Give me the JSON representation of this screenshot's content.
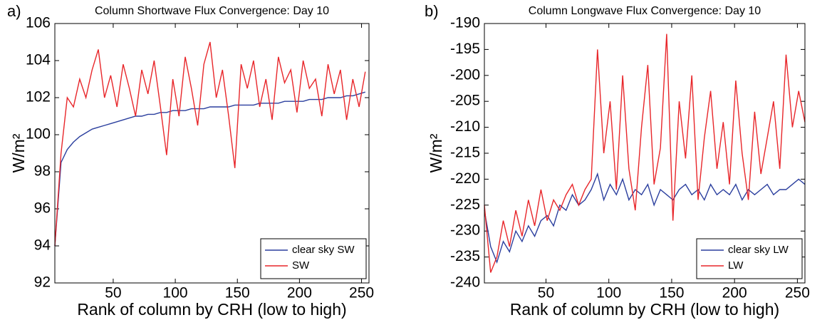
{
  "chart_data": [
    {
      "type": "line",
      "panel": "a)",
      "title": "Column Shortwave Flux Convergence: Day 10",
      "xlabel": "Rank of column by CRH (low to high)",
      "ylabel": "W/m²",
      "x": [
        3,
        8,
        13,
        18,
        23,
        28,
        33,
        38,
        43,
        48,
        53,
        58,
        63,
        68,
        73,
        78,
        83,
        88,
        93,
        98,
        103,
        108,
        113,
        118,
        123,
        128,
        133,
        138,
        143,
        148,
        153,
        158,
        163,
        168,
        173,
        178,
        183,
        188,
        193,
        198,
        203,
        208,
        213,
        218,
        223,
        228,
        233,
        238,
        243,
        248,
        253
      ],
      "series": [
        {
          "name": "clear sky SW",
          "color": "#2b3f9e",
          "values": [
            94.0,
            98.5,
            99.2,
            99.6,
            99.9,
            100.1,
            100.3,
            100.4,
            100.5,
            100.6,
            100.7,
            100.8,
            100.9,
            101.0,
            101.0,
            101.1,
            101.1,
            101.2,
            101.2,
            101.3,
            101.3,
            101.3,
            101.4,
            101.4,
            101.4,
            101.5,
            101.5,
            101.5,
            101.5,
            101.6,
            101.6,
            101.6,
            101.6,
            101.7,
            101.7,
            101.7,
            101.7,
            101.8,
            101.8,
            101.8,
            101.8,
            101.9,
            101.9,
            101.9,
            102.0,
            102.0,
            102.0,
            102.1,
            102.1,
            102.2,
            102.3
          ]
        },
        {
          "name": "SW",
          "color": "#e8262a",
          "values": [
            94.0,
            99.0,
            102.0,
            101.5,
            103.0,
            102.0,
            103.5,
            104.6,
            102.0,
            103.2,
            101.5,
            103.8,
            102.5,
            101.0,
            103.5,
            102.2,
            104.0,
            101.5,
            98.9,
            103.0,
            101.0,
            104.2,
            102.5,
            100.5,
            103.8,
            105.0,
            102.0,
            103.5,
            101.0,
            98.2,
            103.8,
            102.5,
            104.0,
            101.5,
            103.0,
            100.8,
            104.2,
            102.8,
            103.5,
            101.2,
            104.0,
            102.5,
            103.0,
            101.0,
            103.8,
            102.2,
            103.5,
            100.8,
            103.0,
            101.5,
            103.4
          ]
        }
      ],
      "xlim": [
        3,
        256
      ],
      "xticks": [
        50,
        100,
        150,
        200,
        250
      ],
      "ylim": [
        92,
        106
      ],
      "yticks": [
        92,
        94,
        96,
        98,
        100,
        102,
        104,
        106
      ],
      "legend": "lower right"
    },
    {
      "type": "line",
      "panel": "b)",
      "title": "Column Longwave Flux Convergence: Day 10",
      "xlabel": "Rank of column by CRH (low to high)",
      "ylabel": "W/m²",
      "x": [
        1,
        6,
        11,
        16,
        21,
        26,
        31,
        36,
        41,
        46,
        51,
        56,
        61,
        66,
        71,
        76,
        81,
        86,
        91,
        96,
        101,
        106,
        111,
        116,
        121,
        126,
        131,
        136,
        141,
        146,
        151,
        156,
        161,
        166,
        171,
        176,
        181,
        186,
        191,
        196,
        201,
        206,
        211,
        216,
        221,
        226,
        231,
        236,
        241,
        246,
        251,
        256
      ],
      "series": [
        {
          "name": "clear sky LW",
          "color": "#2b3f9e",
          "values": [
            -226,
            -233,
            -236,
            -232,
            -234,
            -230,
            -232,
            -229,
            -231,
            -228,
            -227,
            -229,
            -225,
            -226,
            -223,
            -225,
            -224,
            -222,
            -219,
            -224,
            -221,
            -223,
            -220,
            -224,
            -222,
            -223,
            -221,
            -225,
            -222,
            -223,
            -224,
            -222,
            -221,
            -223,
            -222,
            -224,
            -221,
            -223,
            -222,
            -223,
            -221,
            -224,
            -222,
            -223,
            -222,
            -221,
            -223,
            -222,
            -222,
            -221,
            -220,
            -221
          ]
        },
        {
          "name": "LW",
          "color": "#e8262a",
          "values": [
            -225,
            -238,
            -235,
            -228,
            -233,
            -226,
            -231,
            -224,
            -229,
            -222,
            -228,
            -224,
            -226,
            -223,
            -221,
            -225,
            -222,
            -220,
            -195,
            -215,
            -205,
            -222,
            -200,
            -218,
            -226,
            -210,
            -198,
            -221,
            -214,
            -192,
            -228,
            -205,
            -216,
            -200,
            -224,
            -212,
            -203,
            -218,
            -209,
            -221,
            -201,
            -215,
            -224,
            -207,
            -219,
            -212,
            -205,
            -218,
            -196,
            -210,
            -203,
            -209
          ]
        }
      ],
      "xlim": [
        1,
        256
      ],
      "xticks": [
        50,
        100,
        150,
        200,
        250
      ],
      "ylim": [
        -240,
        -190
      ],
      "yticks": [
        -240,
        -235,
        -230,
        -225,
        -220,
        -215,
        -210,
        -205,
        -200,
        -195,
        -190
      ],
      "legend": "lower right"
    }
  ]
}
